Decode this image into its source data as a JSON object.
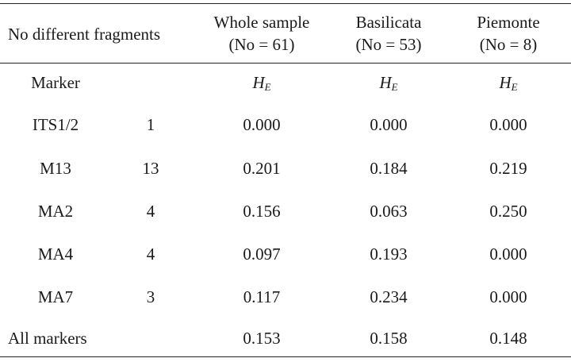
{
  "header": {
    "fragments_label": "No different fragments",
    "columns": [
      {
        "line1": "Whole sample",
        "line2": "(No = 61)"
      },
      {
        "line1": "Basilicata",
        "line2": "(No = 53)"
      },
      {
        "line1": "Piemonte",
        "line2": "(No = 8)"
      }
    ]
  },
  "subheader": {
    "marker_label": "Marker",
    "stat_main": "H",
    "stat_sub": "E"
  },
  "rows": [
    {
      "marker": "ITS1/2",
      "fragments": "1",
      "whole": "0.000",
      "basilicata": "0.000",
      "piemonte": "0.000"
    },
    {
      "marker": "M13",
      "fragments": "13",
      "whole": "0.201",
      "basilicata": "0.184",
      "piemonte": "0.219"
    },
    {
      "marker": "MA2",
      "fragments": "4",
      "whole": "0.156",
      "basilicata": "0.063",
      "piemonte": "0.250"
    },
    {
      "marker": "MA4",
      "fragments": "4",
      "whole": "0.097",
      "basilicata": "0.193",
      "piemonte": "0.000"
    },
    {
      "marker": "MA7",
      "fragments": "3",
      "whole": "0.117",
      "basilicata": "0.234",
      "piemonte": "0.000"
    },
    {
      "marker": "All markers",
      "fragments": "",
      "whole": "0.153",
      "basilicata": "0.158",
      "piemonte": "0.148"
    }
  ]
}
